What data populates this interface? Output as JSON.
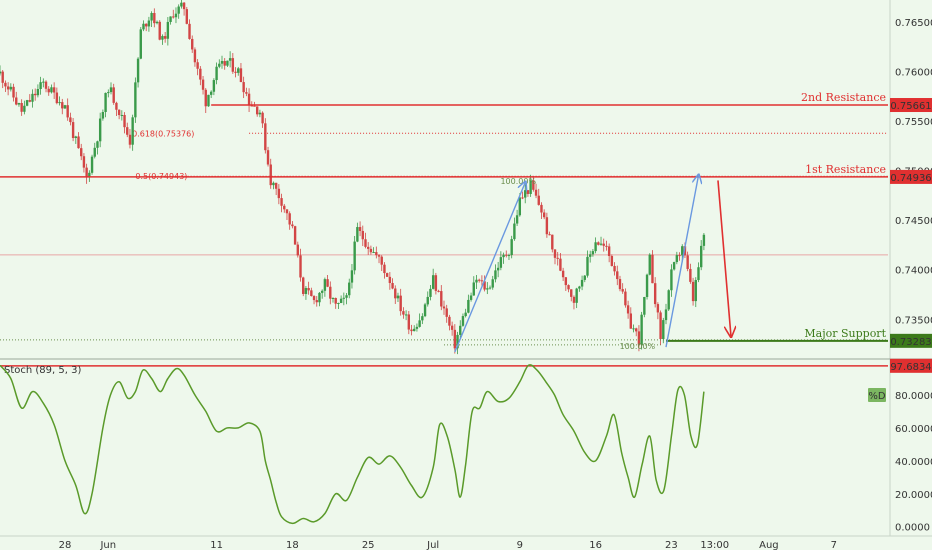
{
  "chart_data": {
    "type": "candlestick",
    "colors": {
      "up": "#3a9a4a",
      "down": "#d24545",
      "resistance": "#e03030",
      "support": "#3c7a1a",
      "arrow_blue": "#6a98e0",
      "arrow_red": "#e03030",
      "stoch": "#5a9a2a",
      "background": "#eef8ec",
      "axis_text": "#333333"
    },
    "price_axis": {
      "range": [
        0.7312,
        0.7672
      ],
      "ticks": [
        "0.76500",
        "0.76000",
        "0.75500",
        "0.75000",
        "0.74500",
        "0.74000",
        "0.73500"
      ]
    },
    "time_axis": {
      "days_range": [
        0,
        82
      ],
      "ticks": [
        {
          "label": "28",
          "day": 6
        },
        {
          "label": "Jun",
          "day": 10
        },
        {
          "label": "11",
          "day": 20
        },
        {
          "label": "18",
          "day": 27
        },
        {
          "label": "25",
          "day": 34
        },
        {
          "label": "Jul",
          "day": 40
        },
        {
          "label": "9",
          "day": 48
        },
        {
          "label": "16",
          "day": 55
        },
        {
          "label": "23",
          "day": 62
        },
        {
          "label": "13:00",
          "day": 66
        },
        {
          "label": "Aug",
          "day": 71
        },
        {
          "label": "7",
          "day": 77
        }
      ]
    },
    "close_path": [
      [
        0,
        0.7598
      ],
      [
        2,
        0.756
      ],
      [
        4,
        0.7588
      ],
      [
        6,
        0.7565
      ],
      [
        8,
        0.7492
      ],
      [
        9,
        0.7535
      ],
      [
        10,
        0.7585
      ],
      [
        11,
        0.756
      ],
      [
        12,
        0.753
      ],
      [
        13,
        0.764
      ],
      [
        14,
        0.766
      ],
      [
        15,
        0.763
      ],
      [
        16,
        0.766
      ],
      [
        17,
        0.7665
      ],
      [
        18,
        0.761
      ],
      [
        19,
        0.757
      ],
      [
        20,
        0.76
      ],
      [
        21,
        0.761
      ],
      [
        22,
        0.76
      ],
      [
        23,
        0.757
      ],
      [
        24,
        0.756
      ],
      [
        25,
        0.749
      ],
      [
        26,
        0.747
      ],
      [
        27,
        0.744
      ],
      [
        28,
        0.738
      ],
      [
        29,
        0.7368
      ],
      [
        30,
        0.7385
      ],
      [
        31,
        0.7362
      ],
      [
        32,
        0.737
      ],
      [
        33,
        0.744
      ],
      [
        34,
        0.7425
      ],
      [
        35,
        0.741
      ],
      [
        36,
        0.739
      ],
      [
        37,
        0.7362
      ],
      [
        38,
        0.734
      ],
      [
        39,
        0.7355
      ],
      [
        40,
        0.739
      ],
      [
        41,
        0.736
      ],
      [
        42,
        0.7325
      ],
      [
        43,
        0.736
      ],
      [
        44,
        0.739
      ],
      [
        45,
        0.738
      ],
      [
        46,
        0.7405
      ],
      [
        47,
        0.742
      ],
      [
        48,
        0.747
      ],
      [
        49,
        0.7485
      ],
      [
        50,
        0.746
      ],
      [
        51,
        0.742
      ],
      [
        52,
        0.7395
      ],
      [
        53,
        0.737
      ],
      [
        54,
        0.74
      ],
      [
        55,
        0.743
      ],
      [
        56,
        0.742
      ],
      [
        57,
        0.7395
      ],
      [
        58,
        0.735
      ],
      [
        59,
        0.733
      ],
      [
        60,
        0.741
      ],
      [
        61,
        0.7332
      ],
      [
        62,
        0.7395
      ],
      [
        63,
        0.7425
      ],
      [
        64,
        0.737
      ],
      [
        65,
        0.7435
      ]
    ],
    "horizontal_levels": [
      {
        "label": "2nd Resistance",
        "value": "0.75661",
        "price": 0.75661
      },
      {
        "label": "1st Resistance",
        "value": "0.74936",
        "price": 0.74936
      },
      {
        "label": "Major Support",
        "value": "0.73283",
        "price": 0.73283
      }
    ],
    "fib_levels": [
      {
        "label": "0.618(0.75376)",
        "price": 0.75376
      },
      {
        "label": "0.5(0.74943)",
        "price": 0.74943
      }
    ],
    "current_price_line": 0.7415,
    "projection_labels": [
      {
        "label": "100.00%",
        "day": 49.5,
        "price": 0.74936
      },
      {
        "label": "100.00%",
        "day": 60.5,
        "price": 0.73283
      }
    ],
    "arrows": [
      {
        "color": "blue",
        "from": [
          42,
          0.7317
        ],
        "to": [
          48.5,
          0.7488
        ]
      },
      {
        "color": "blue",
        "from": [
          61.5,
          0.7322
        ],
        "to": [
          64.5,
          0.7495
        ]
      },
      {
        "color": "red",
        "from": [
          66.3,
          0.749
        ],
        "to": [
          67.5,
          0.7333
        ]
      }
    ],
    "stochastic": {
      "label": "Stoch (89, 5, 3)",
      "legend": "%D",
      "level_value": "97.6834",
      "level": 97.6834,
      "range": [
        -2,
        100
      ],
      "ticks": [
        "80.0000",
        "60.0000",
        "40.0000",
        "20.0000",
        "0.0000"
      ],
      "d_path": [
        [
          0,
          98
        ],
        [
          1,
          90
        ],
        [
          2,
          72
        ],
        [
          3,
          82
        ],
        [
          4,
          75
        ],
        [
          5,
          62
        ],
        [
          6,
          40
        ],
        [
          7,
          25
        ],
        [
          7.8,
          8
        ],
        [
          8.5,
          20
        ],
        [
          9.5,
          60
        ],
        [
          10.2,
          80
        ],
        [
          11,
          88
        ],
        [
          11.8,
          78
        ],
        [
          12.5,
          82
        ],
        [
          13.2,
          95
        ],
        [
          14,
          90
        ],
        [
          14.8,
          82
        ],
        [
          15.5,
          90
        ],
        [
          16.3,
          96
        ],
        [
          17,
          92
        ],
        [
          18,
          80
        ],
        [
          19,
          70
        ],
        [
          20,
          58
        ],
        [
          21,
          60
        ],
        [
          22,
          60
        ],
        [
          23,
          63
        ],
        [
          24,
          58
        ],
        [
          24.5,
          40
        ],
        [
          25,
          28
        ],
        [
          25.5,
          15
        ],
        [
          26,
          6
        ],
        [
          27,
          2
        ],
        [
          28,
          5
        ],
        [
          29,
          3
        ],
        [
          30,
          8
        ],
        [
          31,
          20
        ],
        [
          32,
          16
        ],
        [
          33,
          30
        ],
        [
          34,
          42
        ],
        [
          35,
          38
        ],
        [
          36,
          43
        ],
        [
          37,
          36
        ],
        [
          38,
          25
        ],
        [
          39,
          18
        ],
        [
          40,
          36
        ],
        [
          40.6,
          62
        ],
        [
          41.3,
          55
        ],
        [
          42,
          35
        ],
        [
          42.5,
          18
        ],
        [
          43,
          38
        ],
        [
          43.6,
          70
        ],
        [
          44.3,
          72
        ],
        [
          45,
          82
        ],
        [
          46,
          76
        ],
        [
          47,
          78
        ],
        [
          48,
          88
        ],
        [
          48.8,
          98
        ],
        [
          49.6,
          95
        ],
        [
          50.4,
          88
        ],
        [
          51.2,
          80
        ],
        [
          52,
          68
        ],
        [
          53,
          58
        ],
        [
          54,
          45
        ],
        [
          55,
          40
        ],
        [
          56,
          55
        ],
        [
          56.7,
          68
        ],
        [
          57.4,
          45
        ],
        [
          58,
          30
        ],
        [
          58.6,
          18
        ],
        [
          59.3,
          38
        ],
        [
          60,
          55
        ],
        [
          60.6,
          28
        ],
        [
          61.3,
          22
        ],
        [
          62,
          55
        ],
        [
          62.6,
          83
        ],
        [
          63.2,
          80
        ],
        [
          63.8,
          55
        ],
        [
          64.4,
          50
        ],
        [
          65,
          82
        ]
      ]
    }
  }
}
